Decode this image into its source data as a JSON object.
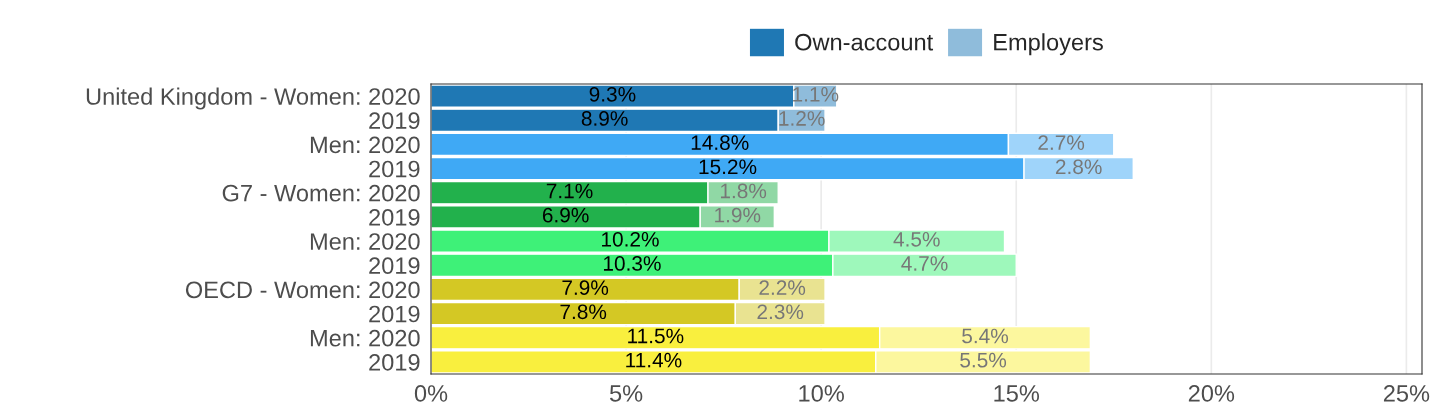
{
  "chart_data": {
    "type": "bar",
    "orientation": "horizontal",
    "stacked": true,
    "categories": [
      "United Kingdom - Women: 2020",
      "2019",
      "Men: 2020",
      "2019",
      "G7 - Women: 2020",
      "2019",
      "Men: 2020",
      "2019",
      "OECD - Women: 2020",
      "2019",
      "Men: 2020",
      "2019"
    ],
    "series": [
      {
        "name": "Own-account",
        "color": "#1f78b4",
        "colors": [
          "#1f78b4",
          "#1f78b4",
          "#3fa9f5",
          "#3fa9f5",
          "#22b14c",
          "#22b14c",
          "#3ef178",
          "#3ef178",
          "#d4c824",
          "#d4c824",
          "#f9ef3e",
          "#f9ef3e"
        ],
        "values": [
          9.3,
          8.9,
          14.8,
          15.2,
          7.1,
          6.9,
          10.2,
          10.3,
          7.9,
          7.8,
          11.5,
          11.4
        ],
        "value_labels": [
          "9.3%",
          "8.9%",
          "14.8%",
          "15.2%",
          "7.1%",
          "6.9%",
          "10.2%",
          "10.3%",
          "7.9%",
          "7.8%",
          "11.5%",
          "11.4%"
        ]
      },
      {
        "name": "Employers",
        "color": "#8fbcdb",
        "colors": [
          "#8fbcdb",
          "#8fbcdb",
          "#9fd4fa",
          "#9fd4fa",
          "#90d8a5",
          "#90d8a5",
          "#9ef8bb",
          "#9ef8bb",
          "#e9e391",
          "#e9e391",
          "#fcf79e",
          "#fcf79e"
        ],
        "values": [
          1.1,
          1.2,
          2.7,
          2.8,
          1.8,
          1.9,
          4.5,
          4.7,
          2.2,
          2.3,
          5.4,
          5.5
        ],
        "value_labels": [
          "1.1%",
          "1.2%",
          "2.7%",
          "2.8%",
          "1.8%",
          "1.9%",
          "4.5%",
          "4.7%",
          "2.2%",
          "2.3%",
          "5.4%",
          "5.5%"
        ]
      }
    ],
    "xlim": [
      0,
      25.4
    ],
    "xticks": [
      {
        "value": 0,
        "label": "0%"
      },
      {
        "value": 5,
        "label": "5%"
      },
      {
        "value": 10,
        "label": "10%"
      },
      {
        "value": 15,
        "label": "15%"
      },
      {
        "value": 20,
        "label": "20%"
      },
      {
        "value": 25,
        "label": "25%"
      }
    ],
    "grid": "x",
    "legend": "top"
  }
}
